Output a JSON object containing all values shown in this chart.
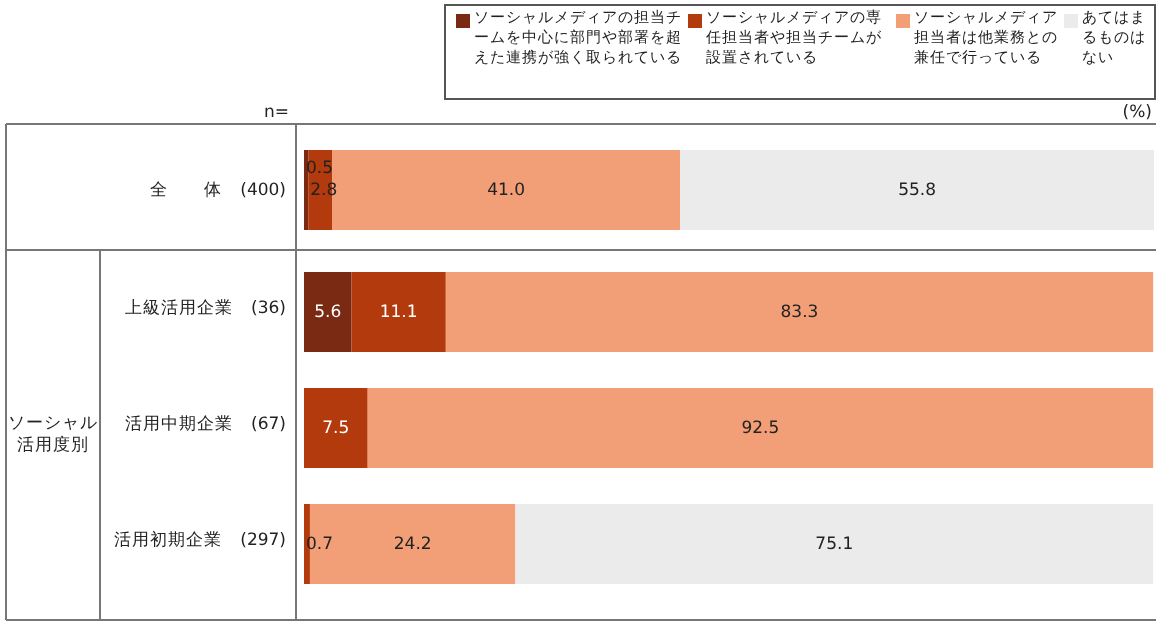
{
  "chart_data": {
    "type": "bar",
    "orientation": "horizontal",
    "stacked": true,
    "legend": "top",
    "categories": [
      "全　　体　(400)",
      "上級活用企業　(36)",
      "活用中期企業　(67)",
      "活用初期企業　(297)"
    ],
    "series": [
      {
        "name": "ソーシャルメディアの担当チームを中心に部門や部署を超えた連携が強く取られている",
        "color": "#7a2a12",
        "values": [
          0.5,
          5.6,
          0,
          0
        ],
        "value_labels": [
          "0.5",
          "5.6",
          null,
          null
        ]
      },
      {
        "name": "ソーシャルメディアの専任担当者や担当チームが設置されている",
        "color": "#b33a0c",
        "values": [
          2.8,
          11.1,
          7.5,
          0.7
        ],
        "value_labels": [
          "2.8",
          "11.1",
          "7.5",
          "0.7"
        ]
      },
      {
        "name": "ソーシャルメディア担当者は他業務との兼任で行っている",
        "color": "#f29f78",
        "values": [
          41.0,
          83.3,
          92.5,
          24.2
        ],
        "value_labels": [
          "41.0",
          "83.3",
          "92.5",
          "24.2"
        ]
      },
      {
        "name": "あてはまるものはない",
        "color": "#ebebeb",
        "values": [
          55.8,
          0,
          0,
          75.1
        ],
        "value_labels": [
          "55.8",
          null,
          null,
          "75.1"
        ]
      }
    ],
    "annotations": [
      "ソーシャル活用度別",
      "n=",
      "(%)"
    ]
  }
}
